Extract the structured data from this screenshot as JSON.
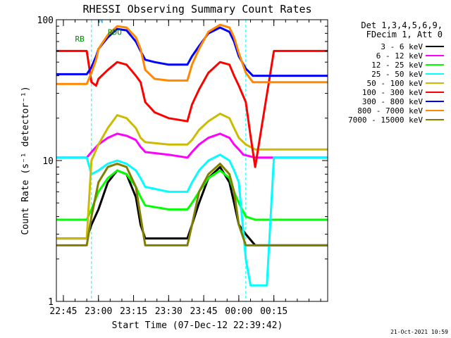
{
  "chart_data": {
    "type": "line",
    "title": "RHESSI Observing Summary Count Rates",
    "xlabel": "Start Time (07-Dec-12 22:39:42)",
    "ylabel": "Count Rate (s⁻¹ detector⁻¹)",
    "yscale": "log",
    "ylim": [
      1,
      100
    ],
    "xlim_minutes": [
      -18,
      98
    ],
    "x_ticks": [
      {
        "label": "22:45",
        "minute": -15
      },
      {
        "label": "23:00",
        "minute": 0
      },
      {
        "label": "23:15",
        "minute": 15
      },
      {
        "label": "23:30",
        "minute": 30
      },
      {
        "label": "23:45",
        "minute": 45
      },
      {
        "label": "00:00",
        "minute": 60
      },
      {
        "label": "00:15",
        "minute": 75
      }
    ],
    "y_ticks": [
      {
        "label": "1",
        "value": 1
      },
      {
        "label": "10",
        "value": 10
      },
      {
        "label": "100",
        "value": 100
      }
    ],
    "legend": {
      "position": "right",
      "header": [
        "Det 1,3,4,5,6,9,",
        "FDecim 1, Att 0"
      ]
    },
    "series": [
      {
        "name": "3 - 6 keV",
        "color": "#000000",
        "x": [
          -18,
          -5,
          -3,
          0,
          4,
          8,
          12,
          16,
          18,
          20,
          30,
          38,
          40,
          43,
          47,
          52,
          56,
          58,
          60,
          63,
          67,
          75,
          98
        ],
        "y": [
          2.8,
          2.8,
          3.5,
          4.5,
          7,
          8.5,
          8,
          5.5,
          3.5,
          2.8,
          2.8,
          2.8,
          3.5,
          5,
          7.5,
          9,
          7,
          5,
          3.5,
          3,
          2.5,
          2.5,
          2.5
        ]
      },
      {
        "name": "6 - 12 keV",
        "color": "#ff00ff",
        "x": [
          -18,
          -5,
          -3,
          0,
          4,
          8,
          12,
          16,
          18,
          20,
          30,
          38,
          40,
          43,
          47,
          52,
          56,
          58,
          60,
          62,
          67,
          98
        ],
        "y": [
          10.5,
          10.5,
          11.5,
          13,
          14.5,
          15.5,
          15,
          14,
          12.5,
          11.5,
          11,
          10.5,
          11.5,
          13,
          14.5,
          15.5,
          14.5,
          13,
          12,
          11,
          10.5,
          10.5
        ]
      },
      {
        "name": "12 - 25 keV",
        "color": "#00ff00",
        "x": [
          -18,
          -5,
          -3,
          0,
          4,
          8,
          12,
          16,
          18,
          20,
          30,
          38,
          40,
          43,
          47,
          52,
          56,
          58,
          60,
          63,
          67,
          75,
          98
        ],
        "y": [
          3.8,
          3.8,
          4.5,
          6,
          7.5,
          8.5,
          8,
          6.5,
          5.5,
          4.8,
          4.5,
          4.5,
          5,
          6,
          7.5,
          8.5,
          7.5,
          6,
          5,
          4,
          3.8,
          3.8,
          3.8
        ]
      },
      {
        "name": "25 - 50 keV",
        "color": "#00ffff",
        "x": [
          -18,
          -5,
          -3,
          0,
          4,
          8,
          12,
          16,
          18,
          20,
          30,
          38,
          40,
          43,
          47,
          52,
          56,
          58,
          60,
          63,
          65,
          68,
          72,
          75,
          98
        ],
        "y": [
          10.5,
          10.5,
          8,
          8.5,
          9.5,
          10,
          9.5,
          8.5,
          7.5,
          6.5,
          6,
          6,
          7,
          8.5,
          10,
          11,
          10,
          8.5,
          7,
          2,
          1.3,
          1.3,
          1.3,
          10.5,
          10.5
        ]
      },
      {
        "name": "50 - 100 keV",
        "color": "#ccbb00",
        "x": [
          -18,
          -5,
          -3,
          0,
          4,
          8,
          12,
          16,
          18,
          20,
          30,
          38,
          40,
          43,
          47,
          52,
          56,
          58,
          60,
          63,
          67,
          75,
          98
        ],
        "y": [
          2.8,
          2.8,
          10,
          13,
          17,
          21,
          20,
          17,
          14.5,
          13.5,
          13,
          13,
          14,
          16.5,
          19,
          21.5,
          20,
          17,
          14.5,
          13,
          12,
          12,
          12
        ]
      },
      {
        "name": "100 - 300 keV",
        "color": "#ff0000",
        "x": [
          -18,
          -5,
          -3,
          -1,
          0,
          4,
          8,
          12,
          16,
          18,
          20,
          24,
          30,
          38,
          40,
          43,
          47,
          52,
          56,
          58,
          60,
          63,
          65,
          67,
          75,
          98
        ],
        "y": [
          60,
          60,
          36,
          34,
          38,
          44,
          50,
          48,
          40,
          36,
          26,
          22,
          20,
          19,
          25,
          32,
          42,
          50,
          48,
          40,
          34,
          26,
          15,
          9,
          60,
          60
        ]
      },
      {
        "name": "300 - 800 keV",
        "color": "#0000ff",
        "x": [
          -18,
          -5,
          -3,
          -1,
          0,
          4,
          8,
          12,
          16,
          18,
          20,
          24,
          30,
          38,
          40,
          43,
          47,
          52,
          56,
          58,
          60,
          63,
          66,
          67,
          75,
          98
        ],
        "y": [
          41,
          41,
          46,
          55,
          62,
          75,
          86,
          84,
          70,
          60,
          52,
          50,
          48,
          48,
          55,
          65,
          80,
          88,
          82,
          70,
          55,
          45,
          40,
          40,
          40,
          40
        ]
      },
      {
        "name": "800 - 7000 keV",
        "color": "#ff8800",
        "x": [
          -18,
          -5,
          -3,
          -1,
          0,
          4,
          8,
          12,
          16,
          18,
          20,
          24,
          30,
          38,
          40,
          43,
          47,
          52,
          56,
          58,
          60,
          63,
          66,
          67,
          75,
          98
        ],
        "y": [
          35,
          35,
          42,
          52,
          62,
          78,
          90,
          88,
          75,
          62,
          44,
          38,
          37,
          37,
          48,
          62,
          82,
          92,
          88,
          75,
          58,
          42,
          36,
          36,
          36,
          36
        ]
      },
      {
        "name": "7000 - 15000 keV",
        "color": "#808000",
        "x": [
          -18,
          -5,
          -3,
          0,
          4,
          8,
          12,
          16,
          18,
          20,
          30,
          38,
          40,
          43,
          47,
          52,
          56,
          58,
          60,
          63,
          67,
          75,
          98
        ],
        "y": [
          2.5,
          2.5,
          4,
          7,
          9,
          9.5,
          9,
          6.5,
          4,
          2.5,
          2.5,
          2.5,
          3.5,
          6,
          8,
          9.5,
          8,
          6,
          3.5,
          2.5,
          2.5,
          2.5,
          2.5
        ]
      }
    ],
    "annotations": [
      {
        "label": "N",
        "minute": 0,
        "value": 95,
        "color": "#00aaff"
      },
      {
        "label": "RDO",
        "minute": 4,
        "value": 78,
        "color": "#008800"
      },
      {
        "label": "RB",
        "minute": -10,
        "value": 70,
        "color": "#008800"
      }
    ],
    "footer": "21-Oct-2021 10:59"
  }
}
